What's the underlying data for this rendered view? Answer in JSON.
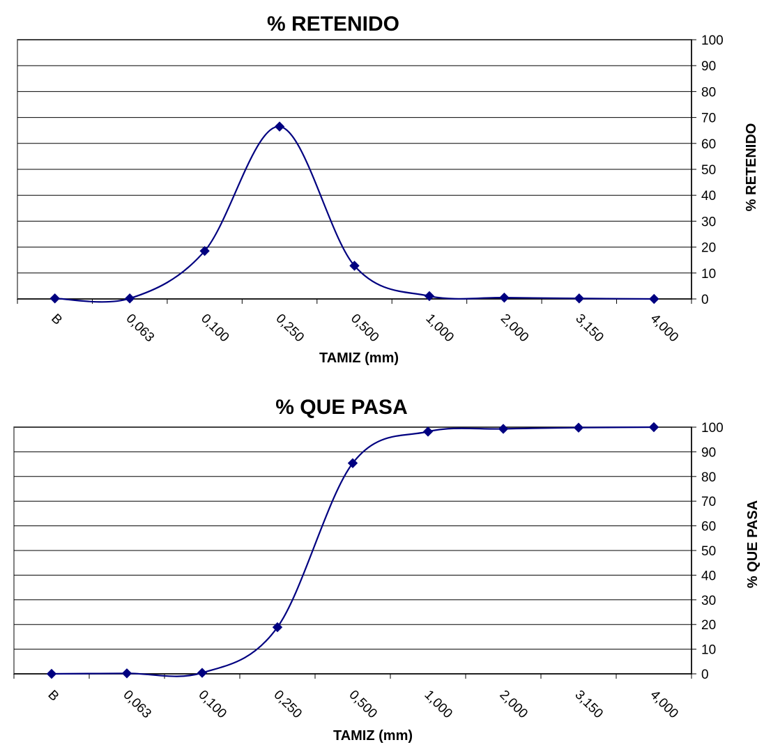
{
  "chart_data": [
    {
      "type": "line",
      "title": "% RETENIDO",
      "xlabel": "TAMIZ (mm)",
      "ylabel": "% RETENIDO",
      "categories": [
        "B",
        "0,063",
        "0,100",
        "0,250",
        "0,500",
        "1,000",
        "2,000",
        "3,150",
        "4,000"
      ],
      "series": [
        {
          "name": "",
          "values": [
            0.2,
            0.2,
            18.5,
            66.5,
            12.8,
            1.1,
            0.5,
            0.2,
            0.0
          ]
        }
      ],
      "ylim": [
        0,
        100
      ],
      "yticks": [
        "0",
        "10",
        "20",
        "30",
        "40",
        "50",
        "60",
        "70",
        "80",
        "90",
        "100"
      ],
      "grid": true,
      "y_axis_side": "right",
      "series_color": "#000080"
    },
    {
      "type": "line",
      "title": "% QUE PASA",
      "xlabel": "TAMIZ (mm)",
      "ylabel": "% QUE PASA",
      "categories": [
        "B",
        "0,063",
        "0,100",
        "0,250",
        "0,500",
        "1,000",
        "2,000",
        "3,150",
        "4,000"
      ],
      "series": [
        {
          "name": "",
          "values": [
            0.0,
            0.2,
            0.4,
            18.9,
            85.4,
            98.2,
            99.3,
            99.8,
            100.0
          ]
        }
      ],
      "ylim": [
        0,
        100
      ],
      "yticks": [
        "0",
        "10",
        "20",
        "30",
        "40",
        "50",
        "60",
        "70",
        "80",
        "90",
        "100"
      ],
      "grid": true,
      "y_axis_side": "right",
      "series_color": "#000080"
    }
  ]
}
